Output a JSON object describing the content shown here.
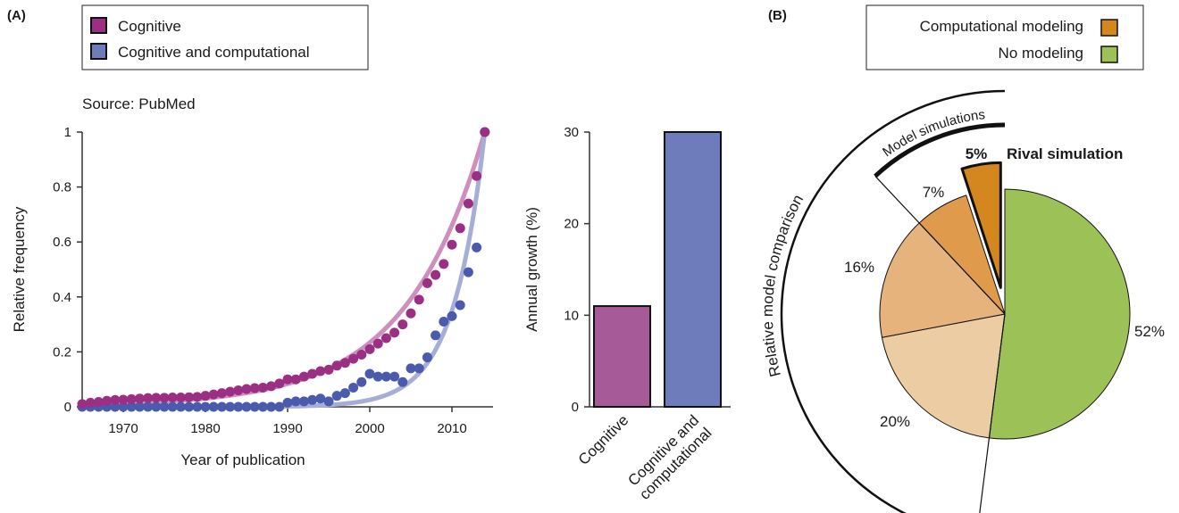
{
  "panels": {
    "a": "(A)",
    "b": "(B)"
  },
  "colors": {
    "cognitive": "#9b2f83",
    "cognitive_fit": "#cf8fbe",
    "computational": "#4a5bae",
    "computational_fit": "#a6aed8",
    "bar_cognitive": "#a65a98",
    "bar_computational": "#6f7cbb",
    "comp_modeling": "#d4861f",
    "no_modeling": "#9cc257",
    "slice_7": "#e09a4c",
    "slice_16": "#e6b37c",
    "slice_20": "#ebcca3"
  },
  "chart_data": [
    {
      "type": "scatter",
      "title": "",
      "source": "Source: PubMed",
      "xlabel": "Year of publication",
      "ylabel": "Relative frequency",
      "xlim": [
        1965,
        2015
      ],
      "ylim": [
        0,
        1
      ],
      "xticks": [
        1970,
        1980,
        1990,
        2000,
        2010
      ],
      "yticks": [
        0,
        0.2,
        0.4,
        0.6,
        0.8,
        1
      ],
      "ytick_labels": [
        "0",
        "0.2",
        "0.4",
        "0.6",
        "0.8",
        "1"
      ],
      "legend": [
        "Cognitive",
        "Cognitive and computational"
      ],
      "legend_position": "top-left",
      "x": [
        1965,
        1966,
        1967,
        1968,
        1969,
        1970,
        1971,
        1972,
        1973,
        1974,
        1975,
        1976,
        1977,
        1978,
        1979,
        1980,
        1981,
        1982,
        1983,
        1984,
        1985,
        1986,
        1987,
        1988,
        1989,
        1990,
        1991,
        1992,
        1993,
        1994,
        1995,
        1996,
        1997,
        1998,
        1999,
        2000,
        2001,
        2002,
        2003,
        2004,
        2005,
        2006,
        2007,
        2008,
        2009,
        2010,
        2011,
        2012,
        2013,
        2014
      ],
      "series": [
        {
          "name": "Cognitive",
          "values": [
            0.01,
            0.015,
            0.018,
            0.022,
            0.025,
            0.026,
            0.028,
            0.03,
            0.032,
            0.033,
            0.033,
            0.034,
            0.034,
            0.035,
            0.036,
            0.04,
            0.045,
            0.05,
            0.055,
            0.06,
            0.065,
            0.068,
            0.07,
            0.075,
            0.085,
            0.1,
            0.1,
            0.11,
            0.12,
            0.13,
            0.135,
            0.15,
            0.16,
            0.175,
            0.19,
            0.21,
            0.23,
            0.25,
            0.27,
            0.3,
            0.34,
            0.39,
            0.45,
            0.48,
            0.52,
            0.59,
            0.65,
            0.74,
            0.84,
            1.0
          ],
          "fit_growth_pct": 11
        },
        {
          "name": "Cognitive and computational",
          "values": [
            0,
            0,
            0,
            0,
            0,
            0,
            0,
            0,
            0,
            0,
            0,
            0,
            0,
            0,
            0,
            0,
            0,
            0,
            0,
            0,
            0,
            0,
            0,
            0,
            0,
            0.015,
            0.02,
            0.02,
            0.025,
            0.03,
            0.02,
            0.04,
            0.05,
            0.07,
            0.09,
            0.12,
            0.11,
            0.11,
            0.11,
            0.09,
            0.14,
            0.14,
            0.18,
            0.26,
            0.31,
            0.33,
            0.37,
            0.49,
            0.58,
            1.0
          ],
          "fit_growth_pct": 30
        }
      ]
    },
    {
      "type": "bar",
      "title": "",
      "ylabel": "Annual growth (%)",
      "ylim": [
        0,
        30
      ],
      "yticks": [
        0,
        10,
        20,
        30
      ],
      "categories": [
        "Cognitive",
        "Cognitive and computational"
      ],
      "category_label_lines": [
        [
          "Cognitive"
        ],
        [
          "Cognitive and",
          "computational"
        ]
      ],
      "values": [
        11,
        30
      ]
    },
    {
      "type": "pie",
      "title": "",
      "legend": [
        "Computational modeling",
        "No modeling"
      ],
      "legend_position": "top-right",
      "slices": [
        {
          "label": "52%",
          "value": 52,
          "group": "No modeling"
        },
        {
          "label": "20%",
          "value": 20,
          "group": "Computational modeling"
        },
        {
          "label": "16%",
          "value": 16,
          "group": "Computational modeling"
        },
        {
          "label": "7%",
          "value": 7,
          "group": "Computational modeling"
        },
        {
          "label": "5%",
          "value": 5,
          "group": "Computational modeling",
          "exploded": true,
          "annotation": "Rival simulation"
        }
      ],
      "brackets": {
        "outer": "Relative model comparison",
        "inner": "Model simulations"
      }
    }
  ]
}
